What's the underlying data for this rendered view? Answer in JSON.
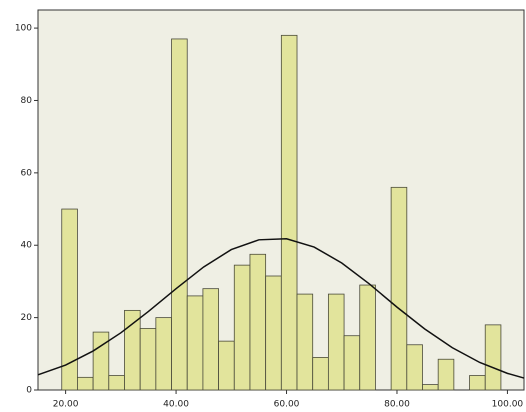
{
  "chart_data": {
    "type": "histogram",
    "bins": [
      19.3,
      22.14,
      24.98,
      27.82,
      30.66,
      33.5,
      36.34,
      39.18,
      42.02,
      44.86,
      47.7,
      50.54,
      53.38,
      56.22,
      59.06,
      61.9,
      64.74,
      67.58,
      70.42,
      73.26,
      76.1,
      78.94,
      81.78,
      84.62,
      87.46,
      90.3,
      93.14,
      95.98,
      98.82
    ],
    "values": [
      50,
      3.5,
      16,
      4,
      22,
      17,
      20,
      97,
      26,
      28,
      13.5,
      34.5,
      37.5,
      31.5,
      98,
      26.5,
      9,
      26.5,
      15,
      29,
      0,
      56,
      12.5,
      1.5,
      8.5,
      0,
      4,
      18
    ],
    "color": "#e2e49c",
    "curve": {
      "x": [
        15,
        20,
        25,
        30,
        35,
        40,
        45,
        50,
        55,
        60,
        65,
        70,
        75,
        80,
        85,
        90,
        95,
        100,
        103
      ],
      "values": [
        4.2,
        6.9,
        10.8,
        15.8,
        21.7,
        28.0,
        34.0,
        38.8,
        41.5,
        41.8,
        39.5,
        35.1,
        29.3,
        22.9,
        16.9,
        11.7,
        7.6,
        4.6,
        3.3
      ],
      "color": "#111111"
    },
    "xlim": [
      15,
      103
    ],
    "ylim": [
      0,
      105
    ],
    "xticks": [
      {
        "value": 20,
        "label": "20.00"
      },
      {
        "value": 40,
        "label": "40.00"
      },
      {
        "value": 60,
        "label": "60.00"
      },
      {
        "value": 80,
        "label": "80.00"
      },
      {
        "value": 100,
        "label": "100.00"
      }
    ],
    "yticks": [
      0,
      20,
      40,
      60,
      80,
      100
    ]
  }
}
